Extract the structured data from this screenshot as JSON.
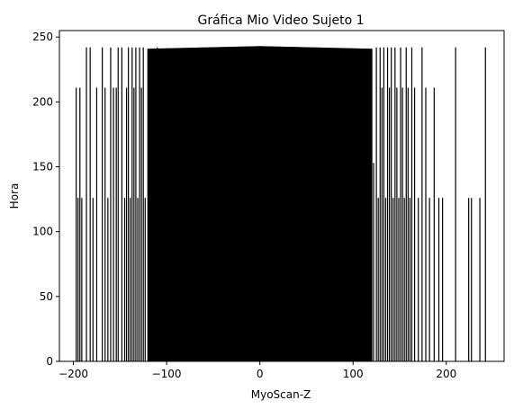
{
  "chart_data": {
    "type": "bar",
    "title": "Gráfica Mio Video Sujeto 1",
    "xlabel": "MyoScan-Z",
    "ylabel": "Hora",
    "xlim": [
      -215,
      262
    ],
    "ylim": [
      0,
      255
    ],
    "xticks": [
      -200,
      -100,
      0,
      100,
      200
    ],
    "xtick_labels": [
      "−200",
      "−100",
      "0",
      "100",
      "200"
    ],
    "yticks": [
      0,
      50,
      100,
      150,
      200,
      250
    ],
    "ytick_labels": [
      "0",
      "50",
      "100",
      "150",
      "200",
      "250"
    ],
    "grid": false,
    "bar_color": "#000000",
    "dense_region": {
      "x_range": [
        -120,
        120
      ],
      "step": 1,
      "top_profile": [
        {
          "x": -120,
          "y": 241
        },
        {
          "x": -60,
          "y": 242
        },
        {
          "x": 0,
          "y": 243
        },
        {
          "x": 60,
          "y": 242
        },
        {
          "x": 120,
          "y": 241
        }
      ]
    },
    "bars": [
      {
        "x": -197,
        "y": 211
      },
      {
        "x": -195,
        "y": 126
      },
      {
        "x": -193,
        "y": 211
      },
      {
        "x": -191,
        "y": 126
      },
      {
        "x": -186,
        "y": 242
      },
      {
        "x": -182,
        "y": 242
      },
      {
        "x": -179,
        "y": 126
      },
      {
        "x": -175,
        "y": 211
      },
      {
        "x": -169,
        "y": 242
      },
      {
        "x": -166,
        "y": 211
      },
      {
        "x": -163,
        "y": 126
      },
      {
        "x": -160,
        "y": 242
      },
      {
        "x": -157,
        "y": 211
      },
      {
        "x": -154,
        "y": 211
      },
      {
        "x": -152,
        "y": 242
      },
      {
        "x": -148,
        "y": 242
      },
      {
        "x": -145,
        "y": 126
      },
      {
        "x": -143,
        "y": 211
      },
      {
        "x": -141,
        "y": 242
      },
      {
        "x": -139,
        "y": 126
      },
      {
        "x": -137,
        "y": 242
      },
      {
        "x": -135,
        "y": 211
      },
      {
        "x": -133,
        "y": 242
      },
      {
        "x": -131,
        "y": 126
      },
      {
        "x": -129,
        "y": 242
      },
      {
        "x": -127,
        "y": 211
      },
      {
        "x": -125,
        "y": 242
      },
      {
        "x": -123,
        "y": 126
      },
      {
        "x": -118,
        "y": 126
      },
      {
        "x": -114,
        "y": 126
      },
      {
        "x": -110,
        "y": 242
      },
      {
        "x": 118,
        "y": 50
      },
      {
        "x": 122,
        "y": 153
      },
      {
        "x": 125,
        "y": 242
      },
      {
        "x": 127,
        "y": 126
      },
      {
        "x": 129,
        "y": 242
      },
      {
        "x": 131,
        "y": 211
      },
      {
        "x": 133,
        "y": 242
      },
      {
        "x": 135,
        "y": 126
      },
      {
        "x": 137,
        "y": 242
      },
      {
        "x": 139,
        "y": 211
      },
      {
        "x": 141,
        "y": 242
      },
      {
        "x": 143,
        "y": 126
      },
      {
        "x": 145,
        "y": 242
      },
      {
        "x": 147,
        "y": 211
      },
      {
        "x": 149,
        "y": 126
      },
      {
        "x": 151,
        "y": 242
      },
      {
        "x": 153,
        "y": 211
      },
      {
        "x": 155,
        "y": 126
      },
      {
        "x": 157,
        "y": 242
      },
      {
        "x": 159,
        "y": 211
      },
      {
        "x": 161,
        "y": 126
      },
      {
        "x": 163,
        "y": 242
      },
      {
        "x": 166,
        "y": 211
      },
      {
        "x": 170,
        "y": 126
      },
      {
        "x": 174,
        "y": 242
      },
      {
        "x": 178,
        "y": 211
      },
      {
        "x": 182,
        "y": 126
      },
      {
        "x": 187,
        "y": 211
      },
      {
        "x": 192,
        "y": 126
      },
      {
        "x": 196,
        "y": 126
      },
      {
        "x": 210,
        "y": 242
      },
      {
        "x": 224,
        "y": 126
      },
      {
        "x": 227,
        "y": 126
      },
      {
        "x": 236,
        "y": 126
      },
      {
        "x": 242,
        "y": 242
      }
    ]
  }
}
